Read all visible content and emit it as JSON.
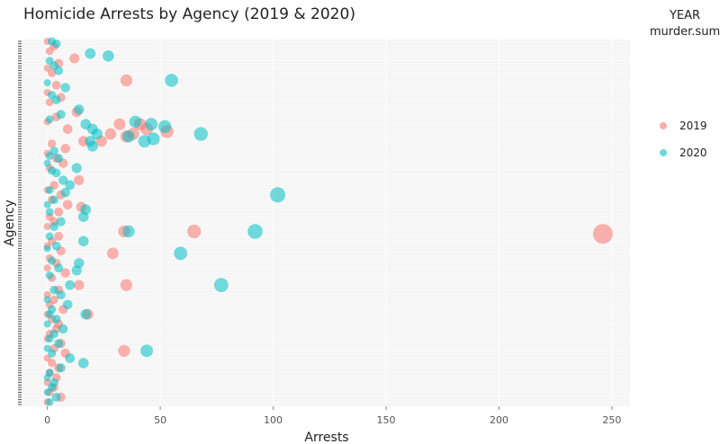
{
  "chart_data": {
    "type": "scatter",
    "title": "Homicide Arrests by Agency (2019 & 2020)",
    "xlabel": "Arrests",
    "ylabel": "Agency",
    "xlim": [
      -13,
      258
    ],
    "xticks": [
      0,
      50,
      100,
      150,
      200,
      250
    ],
    "grid": true,
    "legend": {
      "title": "YEAR\nmurder.sum",
      "position": "right",
      "entries": [
        {
          "label": "2019",
          "color": "#F8766D"
        },
        {
          "label": "2020",
          "color": "#00BFC4"
        }
      ]
    },
    "agency_count": 150,
    "series": [
      {
        "name": "2019",
        "color": "#F8766D",
        "points": [
          [
            0,
            0
          ],
          [
            3,
            2
          ],
          [
            1,
            4
          ],
          [
            12,
            7
          ],
          [
            5,
            9
          ],
          [
            0,
            11
          ],
          [
            2,
            13
          ],
          [
            35,
            16
          ],
          [
            4,
            18
          ],
          [
            0,
            21
          ],
          [
            6,
            23
          ],
          [
            1,
            25
          ],
          [
            13,
            29
          ],
          [
            4,
            31
          ],
          [
            0,
            33
          ],
          [
            32,
            34
          ],
          [
            41,
            34
          ],
          [
            9,
            36
          ],
          [
            28,
            38
          ],
          [
            35,
            39
          ],
          [
            38,
            38
          ],
          [
            44,
            36
          ],
          [
            53,
            37
          ],
          [
            16,
            41
          ],
          [
            24,
            41
          ],
          [
            2,
            42
          ],
          [
            8,
            44
          ],
          [
            0,
            46
          ],
          [
            4,
            48
          ],
          [
            7,
            50
          ],
          [
            1,
            52
          ],
          [
            14,
            57
          ],
          [
            3,
            59
          ],
          [
            0,
            61
          ],
          [
            6,
            63
          ],
          [
            2,
            65
          ],
          [
            9,
            67
          ],
          [
            15,
            68
          ],
          [
            5,
            70
          ],
          [
            1,
            72
          ],
          [
            3,
            74
          ],
          [
            0,
            76
          ],
          [
            34,
            78
          ],
          [
            65,
            78
          ],
          [
            5,
            80
          ],
          [
            2,
            82
          ],
          [
            0,
            84
          ],
          [
            6,
            86
          ],
          [
            29,
            87
          ],
          [
            1,
            89
          ],
          [
            4,
            91
          ],
          [
            0,
            93
          ],
          [
            8,
            95
          ],
          [
            2,
            97
          ],
          [
            14,
            100
          ],
          [
            35,
            100
          ],
          [
            5,
            102
          ],
          [
            0,
            104
          ],
          [
            3,
            106
          ],
          [
            1,
            108
          ],
          [
            7,
            110
          ],
          [
            0,
            112
          ],
          [
            18,
            112
          ],
          [
            2,
            114
          ],
          [
            5,
            116
          ],
          [
            4,
            118
          ],
          [
            1,
            120
          ],
          [
            0,
            122
          ],
          [
            6,
            124
          ],
          [
            3,
            126
          ],
          [
            34,
            127
          ],
          [
            8,
            128
          ],
          [
            0,
            130
          ],
          [
            2,
            132
          ],
          [
            5,
            134
          ],
          [
            1,
            136
          ],
          [
            4,
            138
          ],
          [
            0,
            140
          ],
          [
            3,
            142
          ],
          [
            1,
            144
          ],
          [
            6,
            146
          ],
          [
            0,
            148
          ]
        ]
      },
      {
        "name": "2020",
        "color": "#00BFC4",
        "points": [
          [
            2,
            0
          ],
          [
            4,
            1
          ],
          [
            19,
            5
          ],
          [
            27,
            6
          ],
          [
            1,
            8
          ],
          [
            3,
            10
          ],
          [
            5,
            12
          ],
          [
            55,
            16
          ],
          [
            0,
            17
          ],
          [
            8,
            19
          ],
          [
            2,
            22
          ],
          [
            4,
            24
          ],
          [
            14,
            28
          ],
          [
            6,
            30
          ],
          [
            1,
            32
          ],
          [
            17,
            34
          ],
          [
            39,
            33
          ],
          [
            46,
            34
          ],
          [
            52,
            35
          ],
          [
            20,
            36
          ],
          [
            22,
            38
          ],
          [
            36,
            39
          ],
          [
            47,
            40
          ],
          [
            68,
            38
          ],
          [
            43,
            41
          ],
          [
            19,
            41
          ],
          [
            20,
            43
          ],
          [
            3,
            45
          ],
          [
            1,
            47
          ],
          [
            5,
            48
          ],
          [
            0,
            50
          ],
          [
            13,
            52
          ],
          [
            2,
            53
          ],
          [
            4,
            54
          ],
          [
            7,
            57
          ],
          [
            10,
            59
          ],
          [
            1,
            61
          ],
          [
            8,
            62
          ],
          [
            102,
            63
          ],
          [
            3,
            65
          ],
          [
            0,
            67
          ],
          [
            17,
            69
          ],
          [
            1,
            70
          ],
          [
            16,
            72
          ],
          [
            6,
            74
          ],
          [
            3,
            76
          ],
          [
            36,
            78
          ],
          [
            92,
            78
          ],
          [
            1,
            80
          ],
          [
            16,
            82
          ],
          [
            4,
            84
          ],
          [
            0,
            85
          ],
          [
            59,
            87
          ],
          [
            2,
            90
          ],
          [
            14,
            91
          ],
          [
            5,
            93
          ],
          [
            13,
            94
          ],
          [
            1,
            96
          ],
          [
            10,
            100
          ],
          [
            77,
            100
          ],
          [
            3,
            102
          ],
          [
            6,
            104
          ],
          [
            0,
            106
          ],
          [
            9,
            108
          ],
          [
            2,
            110
          ],
          [
            1,
            112
          ],
          [
            17,
            112
          ],
          [
            4,
            114
          ],
          [
            0,
            116
          ],
          [
            7,
            118
          ],
          [
            3,
            120
          ],
          [
            1,
            122
          ],
          [
            5,
            124
          ],
          [
            0,
            126
          ],
          [
            44,
            127
          ],
          [
            2,
            128
          ],
          [
            10,
            130
          ],
          [
            16,
            132
          ],
          [
            6,
            134
          ],
          [
            1,
            136
          ],
          [
            0,
            138
          ],
          [
            3,
            140
          ],
          [
            2,
            142
          ],
          [
            0,
            144
          ],
          [
            4,
            146
          ],
          [
            1,
            148
          ]
        ]
      }
    ],
    "highlight_points": [
      {
        "series": "2019",
        "x": 246,
        "agency_index": 79
      }
    ]
  }
}
